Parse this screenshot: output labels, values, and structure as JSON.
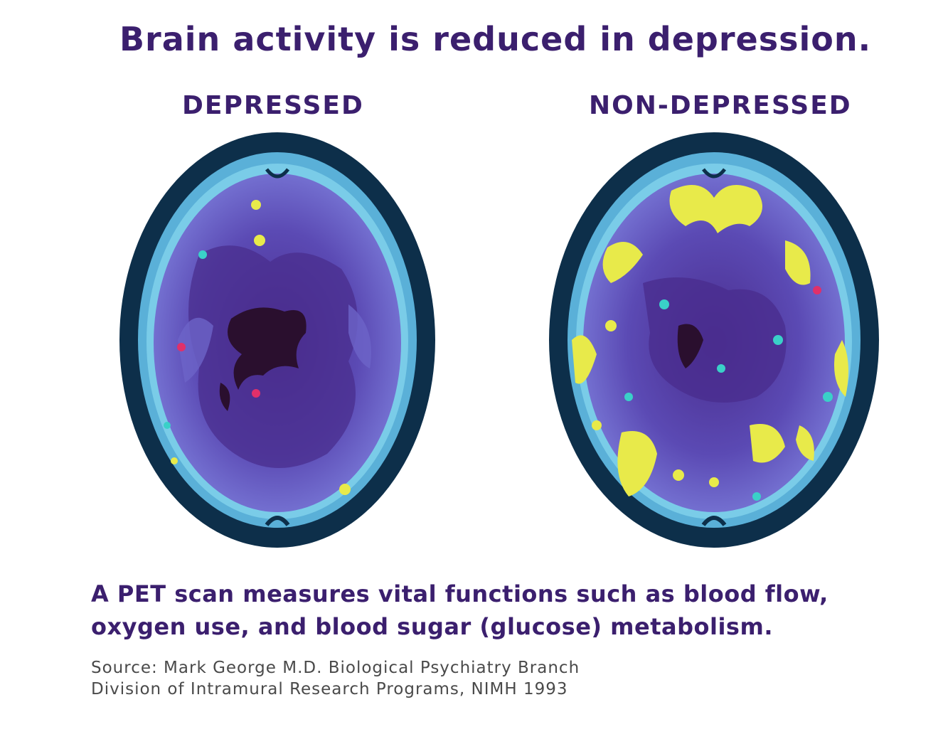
{
  "title": "Brain activity is reduced in depression.",
  "panels": [
    {
      "label": "DEPRESSED"
    },
    {
      "label": "NON-DEPRESSED"
    }
  ],
  "caption": {
    "line1": "A PET scan measures vital functions such as blood flow,",
    "line2": "oxygen use, and blood sugar (glucose) metabolism."
  },
  "source": {
    "line1": "Source: Mark George M.D. Biological Psychiatry Branch",
    "line2": "Division of Intramural Research Programs, NIMH 1993"
  },
  "colors": {
    "text": "#3b1f6e",
    "skull": "#0d2f4a",
    "rim": "#6fd3f0",
    "tissue": "#6d64c8",
    "deep": "#4a2d8e",
    "core": "#2a0f2e",
    "activity": "#e8ea4a",
    "cyan": "#3ad0c8",
    "hot": "#e0306a"
  },
  "icons": {
    "left_scan": "pet-scan-brain-icon",
    "right_scan": "pet-scan-brain-icon"
  }
}
